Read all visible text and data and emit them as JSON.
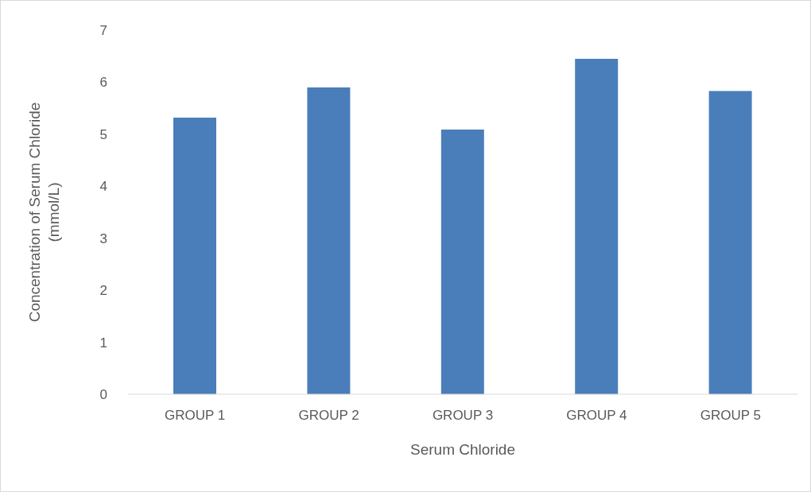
{
  "chart_data": {
    "type": "bar",
    "xlabel": "Serum Chloride",
    "ylabel": "Concentration of Serum Chloride\n(mmol/L)",
    "categories": [
      "GROUP 1",
      "GROUP 2",
      "GROUP 3",
      "GROUP 4",
      "GROUP 5"
    ],
    "values": [
      5.32,
      5.9,
      5.09,
      6.45,
      5.83
    ],
    "color": "#4a7ebb",
    "ylim": [
      0,
      7
    ],
    "yticks": [
      0,
      1,
      2,
      3,
      4,
      5,
      6,
      7
    ],
    "grid": false,
    "legend": false
  }
}
